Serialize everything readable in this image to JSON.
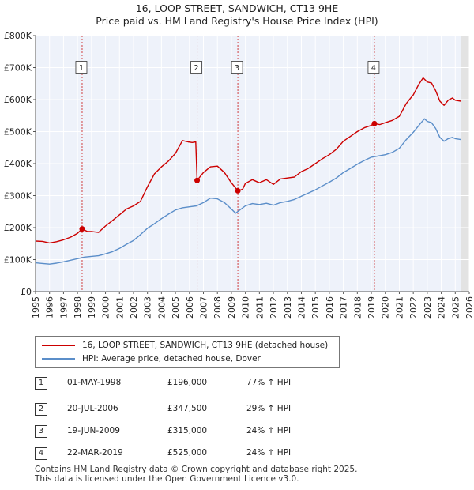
{
  "chart_data": {
    "type": "line",
    "title": "16, LOOP STREET, SANDWICH, CT13 9HE",
    "subtitle": "Price paid vs. HM Land Registry's House Price Index (HPI)",
    "xlim": [
      1995,
      2026
    ],
    "ylim": [
      0,
      800000
    ],
    "x_ticks": [
      "1995",
      "1996",
      "1997",
      "1998",
      "1999",
      "2000",
      "2001",
      "2002",
      "2003",
      "2004",
      "2005",
      "2006",
      "2007",
      "2008",
      "2009",
      "2010",
      "2011",
      "2012",
      "2013",
      "2014",
      "2015",
      "2016",
      "2017",
      "2018",
      "2019",
      "2020",
      "2021",
      "2022",
      "2023",
      "2024",
      "2025",
      "2026"
    ],
    "y_ticks": [
      {
        "value": 0,
        "label": "£0"
      },
      {
        "value": 100000,
        "label": "£100K"
      },
      {
        "value": 200000,
        "label": "£200K"
      },
      {
        "value": 300000,
        "label": "£300K"
      },
      {
        "value": 400000,
        "label": "£400K"
      },
      {
        "value": 500000,
        "label": "£500K"
      },
      {
        "value": 600000,
        "label": "£600K"
      },
      {
        "value": 700000,
        "label": "£700K"
      },
      {
        "value": 800000,
        "label": "£800K"
      }
    ],
    "series": [
      {
        "name": "16, LOOP STREET, SANDWICH, CT13 9HE (detached house)",
        "color": "#cc0000",
        "points": [
          [
            1995.0,
            158000
          ],
          [
            1995.5,
            157000
          ],
          [
            1996.0,
            152000
          ],
          [
            1996.5,
            156000
          ],
          [
            1997.0,
            162000
          ],
          [
            1997.5,
            170000
          ],
          [
            1998.0,
            182000
          ],
          [
            1998.33,
            196000
          ],
          [
            1998.7,
            188000
          ],
          [
            1999.0,
            188000
          ],
          [
            1999.5,
            185000
          ],
          [
            2000.0,
            205000
          ],
          [
            2000.5,
            222000
          ],
          [
            2001.0,
            240000
          ],
          [
            2001.5,
            258000
          ],
          [
            2002.0,
            268000
          ],
          [
            2002.5,
            282000
          ],
          [
            2003.0,
            328000
          ],
          [
            2003.5,
            368000
          ],
          [
            2004.0,
            390000
          ],
          [
            2004.5,
            408000
          ],
          [
            2005.0,
            432000
          ],
          [
            2005.5,
            472000
          ],
          [
            2005.9,
            468000
          ],
          [
            2006.2,
            466000
          ],
          [
            2006.45,
            468000
          ],
          [
            2006.55,
            347500
          ],
          [
            2007.0,
            372000
          ],
          [
            2007.5,
            390000
          ],
          [
            2008.0,
            392000
          ],
          [
            2008.5,
            372000
          ],
          [
            2009.0,
            340000
          ],
          [
            2009.46,
            315000
          ],
          [
            2009.8,
            320000
          ],
          [
            2010.0,
            338000
          ],
          [
            2010.5,
            350000
          ],
          [
            2011.0,
            340000
          ],
          [
            2011.5,
            350000
          ],
          [
            2012.0,
            335000
          ],
          [
            2012.5,
            352000
          ],
          [
            2013.0,
            355000
          ],
          [
            2013.5,
            358000
          ],
          [
            2014.0,
            375000
          ],
          [
            2014.5,
            385000
          ],
          [
            2015.0,
            400000
          ],
          [
            2015.5,
            415000
          ],
          [
            2016.0,
            428000
          ],
          [
            2016.5,
            445000
          ],
          [
            2017.0,
            470000
          ],
          [
            2017.5,
            485000
          ],
          [
            2018.0,
            500000
          ],
          [
            2018.5,
            512000
          ],
          [
            2018.9,
            518000
          ],
          [
            2019.22,
            525000
          ],
          [
            2019.6,
            522000
          ],
          [
            2020.0,
            528000
          ],
          [
            2020.5,
            535000
          ],
          [
            2021.0,
            548000
          ],
          [
            2021.5,
            588000
          ],
          [
            2022.0,
            615000
          ],
          [
            2022.4,
            648000
          ],
          [
            2022.7,
            668000
          ],
          [
            2023.0,
            655000
          ],
          [
            2023.3,
            652000
          ],
          [
            2023.6,
            628000
          ],
          [
            2023.9,
            595000
          ],
          [
            2024.2,
            582000
          ],
          [
            2024.5,
            598000
          ],
          [
            2024.8,
            605000
          ],
          [
            2025.0,
            598000
          ],
          [
            2025.4,
            595000
          ]
        ]
      },
      {
        "name": "HPI: Average price, detached house, Dover",
        "color": "#5b8ec9",
        "points": [
          [
            1995.0,
            90000
          ],
          [
            1995.5,
            88000
          ],
          [
            1996.0,
            86000
          ],
          [
            1996.5,
            89000
          ],
          [
            1997.0,
            93000
          ],
          [
            1997.5,
            98000
          ],
          [
            1998.0,
            103000
          ],
          [
            1998.5,
            108000
          ],
          [
            1999.0,
            110000
          ],
          [
            1999.5,
            112000
          ],
          [
            2000.0,
            118000
          ],
          [
            2000.5,
            125000
          ],
          [
            2001.0,
            135000
          ],
          [
            2001.5,
            148000
          ],
          [
            2002.0,
            160000
          ],
          [
            2002.5,
            178000
          ],
          [
            2003.0,
            198000
          ],
          [
            2003.5,
            212000
          ],
          [
            2004.0,
            228000
          ],
          [
            2004.5,
            242000
          ],
          [
            2005.0,
            255000
          ],
          [
            2005.5,
            262000
          ],
          [
            2006.0,
            265000
          ],
          [
            2006.5,
            268000
          ],
          [
            2007.0,
            278000
          ],
          [
            2007.5,
            292000
          ],
          [
            2008.0,
            290000
          ],
          [
            2008.5,
            278000
          ],
          [
            2009.0,
            258000
          ],
          [
            2009.3,
            245000
          ],
          [
            2009.6,
            255000
          ],
          [
            2010.0,
            268000
          ],
          [
            2010.5,
            275000
          ],
          [
            2011.0,
            272000
          ],
          [
            2011.5,
            276000
          ],
          [
            2012.0,
            270000
          ],
          [
            2012.5,
            278000
          ],
          [
            2013.0,
            282000
          ],
          [
            2013.5,
            288000
          ],
          [
            2014.0,
            298000
          ],
          [
            2014.5,
            308000
          ],
          [
            2015.0,
            318000
          ],
          [
            2015.5,
            330000
          ],
          [
            2016.0,
            342000
          ],
          [
            2016.5,
            355000
          ],
          [
            2017.0,
            372000
          ],
          [
            2017.5,
            385000
          ],
          [
            2018.0,
            398000
          ],
          [
            2018.5,
            410000
          ],
          [
            2019.0,
            420000
          ],
          [
            2019.5,
            424000
          ],
          [
            2020.0,
            428000
          ],
          [
            2020.5,
            435000
          ],
          [
            2021.0,
            448000
          ],
          [
            2021.5,
            475000
          ],
          [
            2022.0,
            498000
          ],
          [
            2022.5,
            525000
          ],
          [
            2022.8,
            540000
          ],
          [
            2023.0,
            532000
          ],
          [
            2023.3,
            528000
          ],
          [
            2023.6,
            510000
          ],
          [
            2023.9,
            482000
          ],
          [
            2024.2,
            470000
          ],
          [
            2024.5,
            478000
          ],
          [
            2024.8,
            482000
          ],
          [
            2025.0,
            478000
          ],
          [
            2025.4,
            475000
          ]
        ]
      }
    ],
    "sales": [
      {
        "num": "1",
        "x": 1998.33,
        "y": 196000
      },
      {
        "num": "2",
        "x": 2006.55,
        "y": 347500
      },
      {
        "num": "3",
        "x": 2009.46,
        "y": 315000
      },
      {
        "num": "4",
        "x": 2019.22,
        "y": 525000
      }
    ],
    "marker_label_value": 700000,
    "shaded_after": 2025.4,
    "grid": true
  },
  "legend": {
    "items": [
      {
        "label": "16, LOOP STREET, SANDWICH, CT13 9HE (detached house)",
        "color": "#cc0000"
      },
      {
        "label": "HPI: Average price, detached house, Dover",
        "color": "#5b8ec9"
      }
    ]
  },
  "sales_table": [
    {
      "num": "1",
      "date": "01-MAY-1998",
      "price": "£196,000",
      "hpi": "77% ↑ HPI"
    },
    {
      "num": "2",
      "date": "20-JUL-2006",
      "price": "£347,500",
      "hpi": "29% ↑ HPI"
    },
    {
      "num": "3",
      "date": "19-JUN-2009",
      "price": "£315,000",
      "hpi": "24% ↑ HPI"
    },
    {
      "num": "4",
      "date": "22-MAR-2019",
      "price": "£525,000",
      "hpi": "24% ↑ HPI"
    }
  ],
  "footer": {
    "line1": "Contains HM Land Registry data © Crown copyright and database right 2025.",
    "line2": "This data is licensed under the Open Government Licence v3.0."
  }
}
